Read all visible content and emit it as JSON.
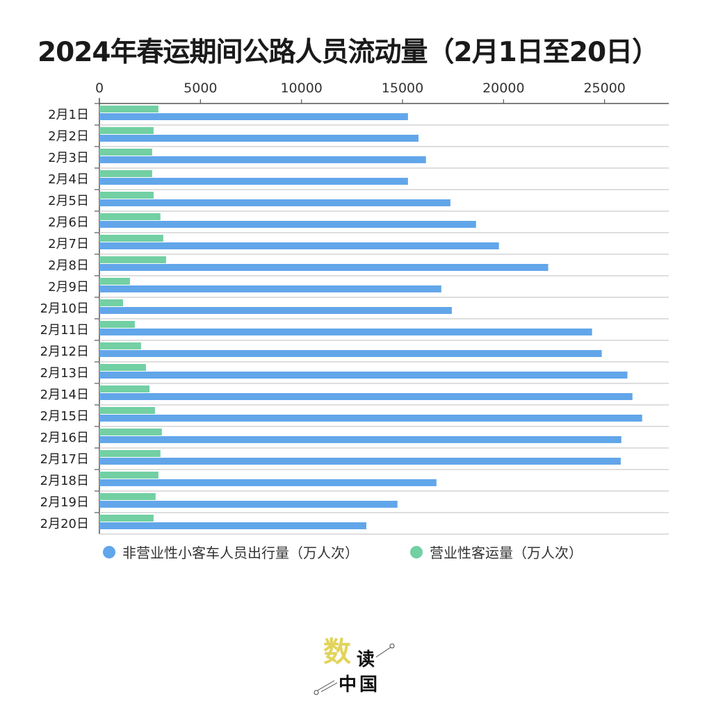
{
  "chart_data": {
    "type": "bar",
    "orientation": "horizontal",
    "title": "2024年春运期间公路人员流动量（2月1日至20日）",
    "categories": [
      "2月1日",
      "2月2日",
      "2月3日",
      "2月4日",
      "2月5日",
      "2月6日",
      "2月7日",
      "2月8日",
      "2月9日",
      "2月10日",
      "2月11日",
      "2月12日",
      "2月13日",
      "2月14日",
      "2月15日",
      "2月16日",
      "2月17日",
      "2月18日",
      "2月19日",
      "2月20日"
    ],
    "series": [
      {
        "name": "营业性客运量（万人次）",
        "color": "#72d0a3",
        "values": [
          2920,
          2680,
          2610,
          2610,
          2680,
          3020,
          3160,
          3300,
          1510,
          1170,
          1750,
          2060,
          2300,
          2480,
          2750,
          3090,
          3020,
          2920,
          2780,
          2680
        ]
      },
      {
        "name": "非营业性小客车人员出行量（万人次）",
        "color": "#62a6ea",
        "values": [
          15270,
          15790,
          16160,
          15270,
          17370,
          18640,
          19770,
          22210,
          16920,
          17440,
          24380,
          24860,
          26130,
          26380,
          26860,
          25830,
          25800,
          16680,
          14750,
          13210
        ]
      }
    ],
    "xlim": [
      0,
      28000
    ],
    "xticks": [
      "0",
      "5000",
      "10000",
      "15000",
      "20000",
      "25000"
    ],
    "axis_position": "top",
    "grid": true,
    "legend": "bottom"
  },
  "legend": {
    "items": [
      {
        "label": "非营业性小客车人员出行量（万人次）",
        "color": "#62a6ea"
      },
      {
        "label": "营业性客运量（万人次）",
        "color": "#72d0a3"
      }
    ]
  },
  "logo": {
    "text": "数读中国"
  }
}
